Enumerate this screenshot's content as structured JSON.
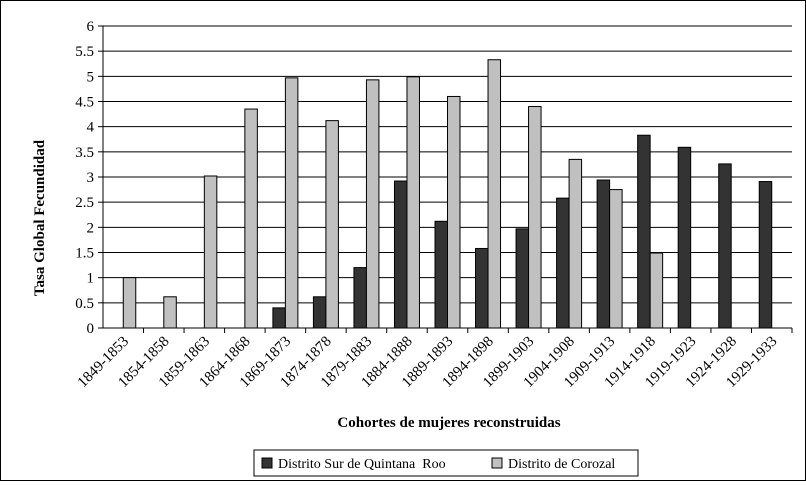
{
  "chart_data": {
    "type": "bar",
    "title": "",
    "xlabel": "Cohortes de mujeres reconstruidas",
    "ylabel": "Tasa Global Fecundidad",
    "ylim": [
      0,
      6
    ],
    "yticks": [
      "0",
      "0.5",
      "1",
      "1.5",
      "2",
      "2.5",
      "3",
      "3.5",
      "4",
      "4.5",
      "5",
      "5.5",
      "6"
    ],
    "grid": true,
    "legend_position": "bottom",
    "categories": [
      "1849-1853",
      "1854-1858",
      "1859-1863",
      "1864-1868",
      "1869-1873",
      "1874-1878",
      "1879-1883",
      "1884-1888",
      "1889-1893",
      "1894-1898",
      "1899-1903",
      "1904-1908",
      "1909-1913",
      "1914-1918",
      "1919-1923",
      "1924-1928",
      "1929-1933"
    ],
    "series": [
      {
        "name": "Distrito Sur de Quintana  Roo",
        "color": "#333333",
        "values": [
          null,
          null,
          null,
          null,
          0.4,
          0.62,
          1.2,
          2.92,
          2.12,
          1.58,
          1.97,
          2.58,
          2.94,
          3.83,
          3.59,
          3.26,
          2.91
        ]
      },
      {
        "name": "Distrito de Corozal",
        "color": "#c0c0c0",
        "values": [
          1.0,
          0.62,
          3.02,
          4.35,
          4.97,
          4.12,
          4.93,
          4.99,
          4.6,
          5.33,
          4.4,
          3.35,
          2.75,
          1.49,
          null,
          null,
          null
        ]
      }
    ]
  }
}
